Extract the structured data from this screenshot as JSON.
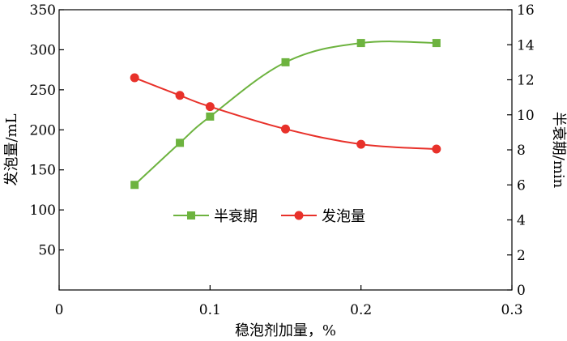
{
  "chart_data": {
    "type": "line",
    "title": "",
    "xlabel": "稳泡剂加量，%",
    "ylabel_left": "发泡量/mL",
    "ylabel_right": "半衰期/min",
    "xlim": [
      0,
      0.3
    ],
    "ylim_left": [
      0,
      350
    ],
    "ylim_right": [
      0,
      16
    ],
    "x_ticks": [
      {
        "value": 0,
        "label": "0"
      },
      {
        "value": 0.1,
        "label": "0.1"
      },
      {
        "value": 0.2,
        "label": "0.2"
      },
      {
        "value": 0.3,
        "label": "0.3"
      }
    ],
    "y_left_ticks": [
      {
        "value": 50,
        "label": "50"
      },
      {
        "value": 100,
        "label": "100"
      },
      {
        "value": 150,
        "label": "150"
      },
      {
        "value": 200,
        "label": "200"
      },
      {
        "value": 250,
        "label": "250"
      },
      {
        "value": 300,
        "label": "300"
      },
      {
        "value": 350,
        "label": "350"
      }
    ],
    "y_right_ticks": [
      {
        "value": 0,
        "label": "0"
      },
      {
        "value": 2,
        "label": "2"
      },
      {
        "value": 4,
        "label": "4"
      },
      {
        "value": 6,
        "label": "6"
      },
      {
        "value": 8,
        "label": "8"
      },
      {
        "value": 10,
        "label": "10"
      },
      {
        "value": 12,
        "label": "12"
      },
      {
        "value": 14,
        "label": "14"
      },
      {
        "value": 16,
        "label": "16"
      }
    ],
    "grid": false,
    "legend_position": "center",
    "series": [
      {
        "name": "半衰期",
        "axis": "right",
        "color": "#6db33f",
        "marker": "square",
        "x": [
          0.05,
          0.08,
          0.1,
          0.15,
          0.2,
          0.25
        ],
        "y": [
          6.0,
          8.4,
          9.9,
          13.0,
          14.1,
          14.1
        ]
      },
      {
        "name": "发泡量",
        "axis": "left",
        "color": "#e8312a",
        "marker": "circle",
        "x": [
          0.05,
          0.08,
          0.1,
          0.15,
          0.2,
          0.25
        ],
        "y": [
          265,
          243,
          229,
          201,
          182,
          176
        ]
      }
    ]
  }
}
